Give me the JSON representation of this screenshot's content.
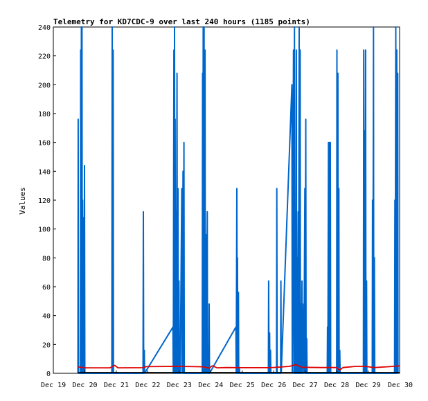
{
  "chart_data": {
    "type": "line",
    "title": "Telemetry for KD7CDC-9 over last 240 hours (1185 points)",
    "xlabel": "",
    "ylabel": "Values",
    "xlim": [
      0,
      11
    ],
    "ylim": [
      0,
      240
    ],
    "x_ticks": [
      0,
      1,
      2,
      3,
      4,
      5,
      6,
      7,
      8,
      9,
      10,
      11
    ],
    "x_tick_labels": [
      "Dec 19",
      "Dec 20",
      "Dec 21",
      "Dec 22",
      "Dec 23",
      "Dec 24",
      "Dec 25",
      "Dec 26",
      "Dec 27",
      "Dec 28",
      "Dec 29",
      "Dec 30"
    ],
    "y_ticks": [
      0,
      20,
      40,
      60,
      80,
      100,
      120,
      140,
      160,
      180,
      200,
      220,
      240
    ],
    "grid": false,
    "legend": "none",
    "series": [
      {
        "color": "#0066cc",
        "points": [
          [
            0.78,
            0
          ],
          [
            0.79,
            176
          ],
          [
            0.8,
            0
          ],
          [
            0.86,
            0
          ],
          [
            0.87,
            224
          ],
          [
            0.88,
            0
          ],
          [
            0.89,
            240
          ],
          [
            0.9,
            0
          ],
          [
            0.91,
            240
          ],
          [
            0.92,
            0
          ],
          [
            0.93,
            120
          ],
          [
            0.94,
            0
          ],
          [
            0.95,
            80
          ],
          [
            0.96,
            0
          ],
          [
            0.97,
            108
          ],
          [
            0.98,
            0
          ],
          [
            0.99,
            144
          ],
          [
            1.0,
            0
          ],
          [
            1.86,
            0
          ],
          [
            1.87,
            240
          ],
          [
            1.88,
            0
          ],
          [
            1.9,
            224
          ],
          [
            1.91,
            0
          ],
          [
            2.85,
            0
          ],
          [
            2.86,
            112
          ],
          [
            2.87,
            0
          ],
          [
            2.88,
            0
          ],
          [
            2.89,
            16
          ],
          [
            2.9,
            0
          ],
          [
            3.8,
            32
          ],
          [
            3.81,
            0
          ],
          [
            3.83,
            224
          ],
          [
            3.84,
            0
          ],
          [
            3.85,
            240
          ],
          [
            3.86,
            0
          ],
          [
            3.87,
            176
          ],
          [
            3.88,
            0
          ],
          [
            3.9,
            112
          ],
          [
            3.91,
            0
          ],
          [
            3.93,
            208
          ],
          [
            3.94,
            0
          ],
          [
            3.96,
            128
          ],
          [
            3.97,
            0
          ],
          [
            3.99,
            64
          ],
          [
            4.0,
            0
          ],
          [
            4.02,
            24
          ],
          [
            4.03,
            0
          ],
          [
            4.08,
            128
          ],
          [
            4.09,
            0
          ],
          [
            4.12,
            140
          ],
          [
            4.13,
            0
          ],
          [
            4.15,
            160
          ],
          [
            4.16,
            0
          ],
          [
            4.73,
            0
          ],
          [
            4.74,
            208
          ],
          [
            4.75,
            0
          ],
          [
            4.76,
            240
          ],
          [
            4.77,
            0
          ],
          [
            4.79,
            240
          ],
          [
            4.8,
            0
          ],
          [
            4.82,
            224
          ],
          [
            4.83,
            0
          ],
          [
            4.85,
            96
          ],
          [
            4.86,
            0
          ],
          [
            4.89,
            112
          ],
          [
            4.9,
            0
          ],
          [
            4.94,
            0
          ],
          [
            4.95,
            48
          ],
          [
            4.96,
            0
          ],
          [
            5.8,
            32
          ],
          [
            5.81,
            0
          ],
          [
            5.83,
            128
          ],
          [
            5.84,
            0
          ],
          [
            5.85,
            80
          ],
          [
            5.86,
            0
          ],
          [
            5.88,
            56
          ],
          [
            5.89,
            0
          ],
          [
            5.91,
            4
          ],
          [
            5.92,
            0
          ],
          [
            6.83,
            0
          ],
          [
            6.84,
            64
          ],
          [
            6.85,
            0
          ],
          [
            6.87,
            28
          ],
          [
            6.88,
            0
          ],
          [
            6.9,
            16
          ],
          [
            6.91,
            0
          ],
          [
            7.09,
            0
          ],
          [
            7.1,
            128
          ],
          [
            7.11,
            0
          ],
          [
            7.22,
            0
          ],
          [
            7.23,
            64
          ],
          [
            7.24,
            0
          ],
          [
            7.58,
            200
          ],
          [
            7.59,
            0
          ],
          [
            7.63,
            224
          ],
          [
            7.64,
            0
          ],
          [
            7.66,
            240
          ],
          [
            7.67,
            0
          ],
          [
            7.69,
            112
          ],
          [
            7.7,
            0
          ],
          [
            7.72,
            224
          ],
          [
            7.73,
            0
          ],
          [
            7.75,
            80
          ],
          [
            7.76,
            0
          ],
          [
            7.78,
            112
          ],
          [
            7.79,
            0
          ],
          [
            7.81,
            240
          ],
          [
            7.82,
            0
          ],
          [
            7.84,
            224
          ],
          [
            7.85,
            0
          ],
          [
            7.87,
            48
          ],
          [
            7.88,
            0
          ],
          [
            7.9,
            64
          ],
          [
            7.91,
            0
          ],
          [
            7.95,
            48
          ],
          [
            7.96,
            0
          ],
          [
            7.99,
            128
          ],
          [
            8.0,
            0
          ],
          [
            8.02,
            176
          ],
          [
            8.03,
            0
          ],
          [
            8.05,
            24
          ],
          [
            8.06,
            0
          ],
          [
            8.7,
            0
          ],
          [
            8.71,
            32
          ],
          [
            8.72,
            0
          ],
          [
            8.74,
            160
          ],
          [
            8.75,
            0
          ],
          [
            8.77,
            160
          ],
          [
            8.78,
            0
          ],
          [
            8.8,
            160
          ],
          [
            8.81,
            0
          ],
          [
            9.0,
            0
          ],
          [
            9.01,
            224
          ],
          [
            9.02,
            0
          ],
          [
            9.04,
            208
          ],
          [
            9.05,
            0
          ],
          [
            9.07,
            128
          ],
          [
            9.08,
            0
          ],
          [
            9.1,
            16
          ],
          [
            9.11,
            0
          ],
          [
            9.85,
            0
          ],
          [
            9.86,
            224
          ],
          [
            9.87,
            0
          ],
          [
            9.89,
            168
          ],
          [
            9.9,
            0
          ],
          [
            9.92,
            224
          ],
          [
            9.93,
            0
          ],
          [
            9.95,
            64
          ],
          [
            9.96,
            0
          ],
          [
            10.13,
            0
          ],
          [
            10.14,
            120
          ],
          [
            10.15,
            0
          ],
          [
            10.17,
            240
          ],
          [
            10.18,
            0
          ],
          [
            10.2,
            80
          ],
          [
            10.21,
            0
          ],
          [
            10.84,
            0
          ],
          [
            10.85,
            120
          ],
          [
            10.86,
            0
          ],
          [
            10.88,
            240
          ],
          [
            10.89,
            0
          ],
          [
            10.91,
            224
          ],
          [
            10.92,
            0
          ],
          [
            10.94,
            208
          ],
          [
            10.95,
            0
          ]
        ]
      },
      {
        "color": "#e00000",
        "points": [
          [
            0.78,
            4.5
          ],
          [
            1.0,
            3.8
          ],
          [
            1.8,
            3.8
          ],
          [
            1.95,
            5.5
          ],
          [
            2.05,
            3.8
          ],
          [
            2.85,
            3.9
          ],
          [
            2.95,
            4.6
          ],
          [
            3.9,
            4.8
          ],
          [
            4.5,
            4.6
          ],
          [
            4.75,
            4.5
          ],
          [
            4.95,
            3.6
          ],
          [
            5.05,
            5.2
          ],
          [
            5.2,
            3.8
          ],
          [
            5.5,
            4.0
          ],
          [
            6.0,
            3.9
          ],
          [
            6.9,
            3.9
          ],
          [
            7.1,
            4.2
          ],
          [
            7.5,
            4.8
          ],
          [
            7.7,
            6.0
          ],
          [
            7.9,
            4.2
          ],
          [
            8.5,
            4.0
          ],
          [
            9.0,
            4.0
          ],
          [
            9.1,
            2.2
          ],
          [
            9.2,
            4.0
          ],
          [
            9.6,
            4.8
          ],
          [
            9.9,
            4.8
          ],
          [
            10.2,
            4.0
          ],
          [
            10.6,
            4.5
          ],
          [
            10.9,
            5.0
          ],
          [
            11.0,
            5.2
          ]
        ]
      },
      {
        "color": "#000000",
        "points": [
          [
            0.78,
            0.5
          ],
          [
            11.0,
            0.5
          ]
        ]
      }
    ]
  }
}
